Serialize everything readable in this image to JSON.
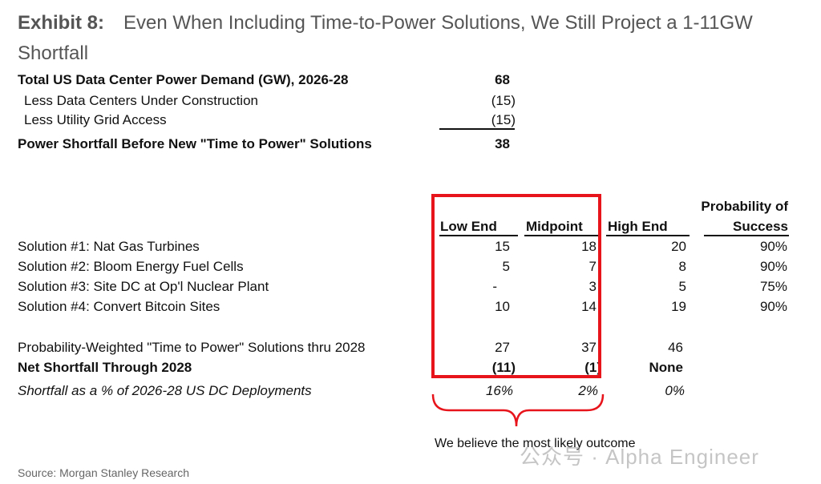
{
  "title": {
    "exhibit": "Exhibit 8:",
    "text": "Even When Including Time-to-Power Solutions, We Still Project a 1-11GW Shortfall"
  },
  "summary": [
    {
      "label": "Total US Data Center Power Demand (GW), 2026-28",
      "value": "68"
    },
    {
      "label": "Less Data Centers Under Construction",
      "value": "(15)"
    },
    {
      "label": "Less Utility Grid Access",
      "value": "(15)"
    },
    {
      "label": "Power Shortfall Before New \"Time to Power\" Solutions",
      "value": "38"
    }
  ],
  "table": {
    "headers": {
      "low": "Low End",
      "mid": "Midpoint",
      "high": "High End",
      "prob_line1": "Probability of",
      "prob_line2": "Success"
    },
    "rows": [
      {
        "label": "Solution #1: Nat Gas Turbines",
        "low": "15",
        "mid": "18",
        "high": "20",
        "prob": "90%"
      },
      {
        "label": "Solution #2: Bloom Energy Fuel Cells",
        "low": "5",
        "mid": "7",
        "high": "8",
        "prob": "90%"
      },
      {
        "label": "Solution #3: Site DC at Op'l Nuclear Plant",
        "low": "-",
        "mid": "3",
        "high": "5",
        "prob": "75%"
      },
      {
        "label": "Solution #4: Convert Bitcoin Sites",
        "low": "10",
        "mid": "14",
        "high": "19",
        "prob": "90%"
      }
    ],
    "weighted": {
      "label": "Probability-Weighted \"Time to Power\" Solutions thru 2028",
      "low": "27",
      "mid": "37",
      "high": "46"
    },
    "net": {
      "label": "Net Shortfall Through 2028",
      "low": "(11)",
      "mid": "(1)",
      "high": "None"
    },
    "pct": {
      "label": "Shortfall as a % of 2026-28 US DC Deployments",
      "low": "16%",
      "mid": "2%",
      "high": "0%"
    }
  },
  "annotation": "We believe the most likely outcome",
  "source": "Source: Morgan Stanley Research",
  "watermark": "公众号 · Alpha Engineer",
  "colors": {
    "highlight": "#e8141c"
  }
}
